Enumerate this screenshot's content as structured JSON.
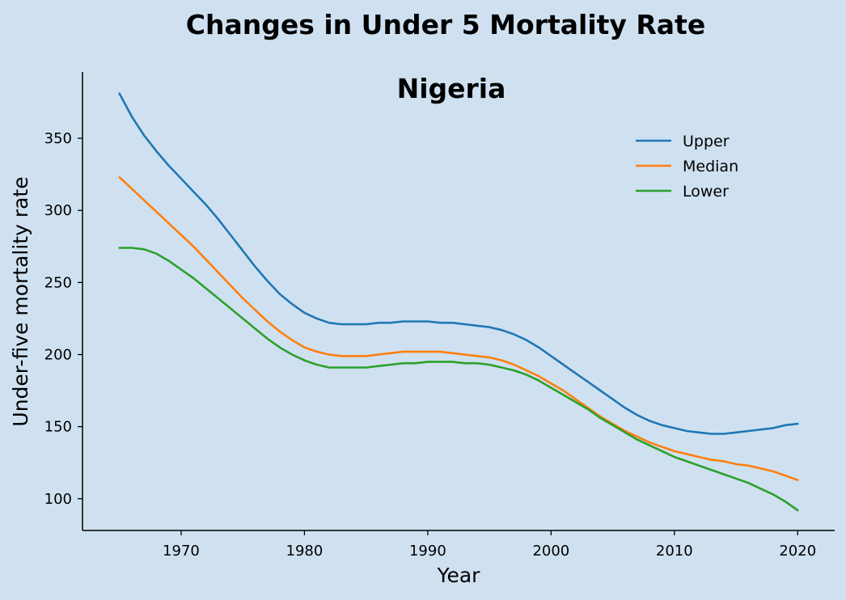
{
  "chart_data": {
    "type": "line",
    "title": "Changes in Under 5 Mortality Rate",
    "subtitle": "Nigeria",
    "xlabel": "Year",
    "ylabel": "Under-five mortality rate",
    "xlim": [
      1962,
      2023
    ],
    "ylim": [
      78,
      396
    ],
    "x_ticks": [
      1970,
      1980,
      1990,
      2000,
      2010,
      2020
    ],
    "y_ticks": [
      100,
      150,
      200,
      250,
      300,
      350
    ],
    "grid": false,
    "legend_position": "top-right",
    "background_color": "#cfe1f1",
    "x": [
      1965,
      1966,
      1967,
      1968,
      1969,
      1970,
      1971,
      1972,
      1973,
      1974,
      1975,
      1976,
      1977,
      1978,
      1979,
      1980,
      1981,
      1982,
      1983,
      1984,
      1985,
      1986,
      1987,
      1988,
      1989,
      1990,
      1991,
      1992,
      1993,
      1994,
      1995,
      1996,
      1997,
      1998,
      1999,
      2000,
      2001,
      2002,
      2003,
      2004,
      2005,
      2006,
      2007,
      2008,
      2009,
      2010,
      2011,
      2012,
      2013,
      2014,
      2015,
      2016,
      2017,
      2018,
      2019,
      2020
    ],
    "series": [
      {
        "name": "Upper",
        "color": "#1f77b4",
        "values": [
          381,
          365,
          352,
          341,
          331,
          322,
          313,
          304,
          294,
          283,
          272,
          261,
          251,
          242,
          235,
          229,
          225,
          222,
          221,
          221,
          221,
          222,
          222,
          223,
          223,
          223,
          222,
          222,
          221,
          220,
          219,
          217,
          214,
          210,
          205,
          199,
          193,
          187,
          181,
          175,
          169,
          163,
          158,
          154,
          151,
          149,
          147,
          146,
          145,
          145,
          146,
          147,
          148,
          149,
          151,
          152
        ]
      },
      {
        "name": "Median",
        "color": "#ff7f0e",
        "values": [
          323,
          315,
          307,
          299,
          291,
          283,
          275,
          266,
          257,
          248,
          239,
          231,
          223,
          216,
          210,
          205,
          202,
          200,
          199,
          199,
          199,
          200,
          201,
          202,
          202,
          202,
          202,
          201,
          200,
          199,
          198,
          196,
          193,
          189,
          185,
          180,
          175,
          169,
          163,
          157,
          152,
          147,
          143,
          139,
          136,
          133,
          131,
          129,
          127,
          126,
          124,
          123,
          121,
          119,
          116,
          113
        ]
      },
      {
        "name": "Lower",
        "color": "#2ca02c",
        "values": [
          274,
          274,
          273,
          270,
          265,
          259,
          253,
          246,
          239,
          232,
          225,
          218,
          211,
          205,
          200,
          196,
          193,
          191,
          191,
          191,
          191,
          192,
          193,
          194,
          194,
          195,
          195,
          195,
          194,
          194,
          193,
          191,
          189,
          186,
          182,
          177,
          172,
          167,
          162,
          156,
          151,
          146,
          141,
          137,
          133,
          129,
          126,
          123,
          120,
          117,
          114,
          111,
          107,
          103,
          98,
          92
        ]
      }
    ]
  }
}
